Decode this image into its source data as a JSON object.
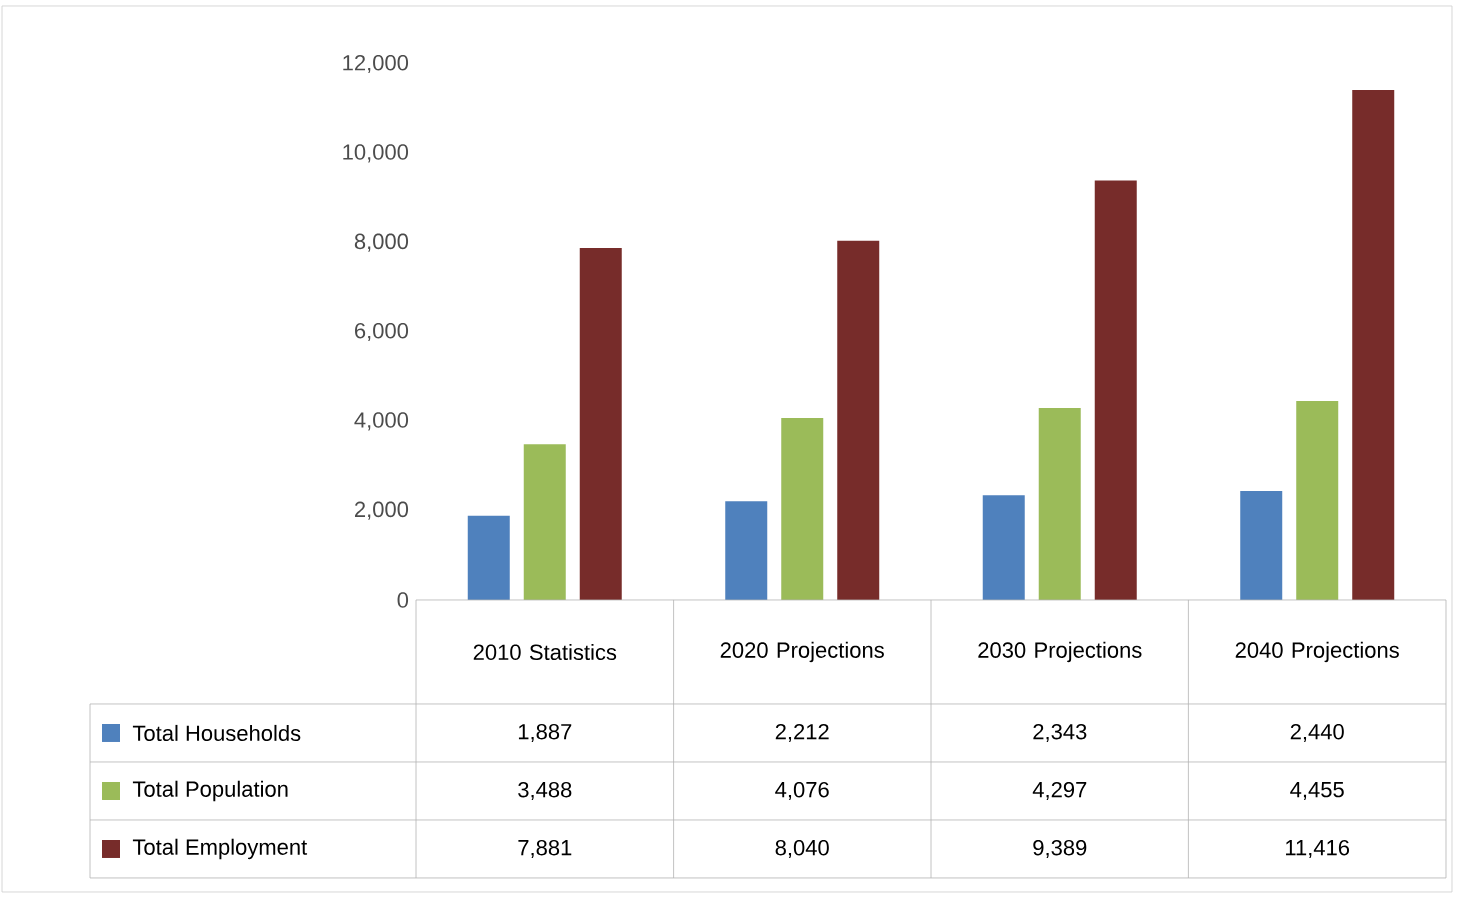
{
  "chart_data": {
    "type": "bar",
    "categories": [
      "2010 Statistics",
      "2020 Projections",
      "2030 Projections",
      "2040 Projections"
    ],
    "series": [
      {
        "name": "Total Households",
        "color": "#4f81bd",
        "values": [
          1887,
          2212,
          2343,
          2440
        ],
        "value_labels": [
          "1,887",
          "2,212",
          "2,343",
          "2,440"
        ]
      },
      {
        "name": "Total Population",
        "color": "#9bbb59",
        "values": [
          3488,
          4076,
          4297,
          4455
        ],
        "value_labels": [
          "3,488",
          "4,076",
          "4,297",
          "4,455"
        ]
      },
      {
        "name": "Total Employment",
        "color": "#772c2a",
        "values": [
          7881,
          8040,
          9389,
          11416
        ],
        "value_labels": [
          "7,881",
          "8,040",
          "9,389",
          "11,416"
        ]
      }
    ],
    "ylim": [
      0,
      12000
    ],
    "yticks": [
      {
        "value": 0,
        "label": "0"
      },
      {
        "value": 2000,
        "label": "2,000"
      },
      {
        "value": 4000,
        "label": "4,000"
      },
      {
        "value": 6000,
        "label": "6,000"
      },
      {
        "value": 8000,
        "label": "8,000"
      },
      {
        "value": 10000,
        "label": "10,000"
      },
      {
        "value": 12000,
        "label": "12,000"
      }
    ],
    "legend": "bottom",
    "grid": false
  }
}
